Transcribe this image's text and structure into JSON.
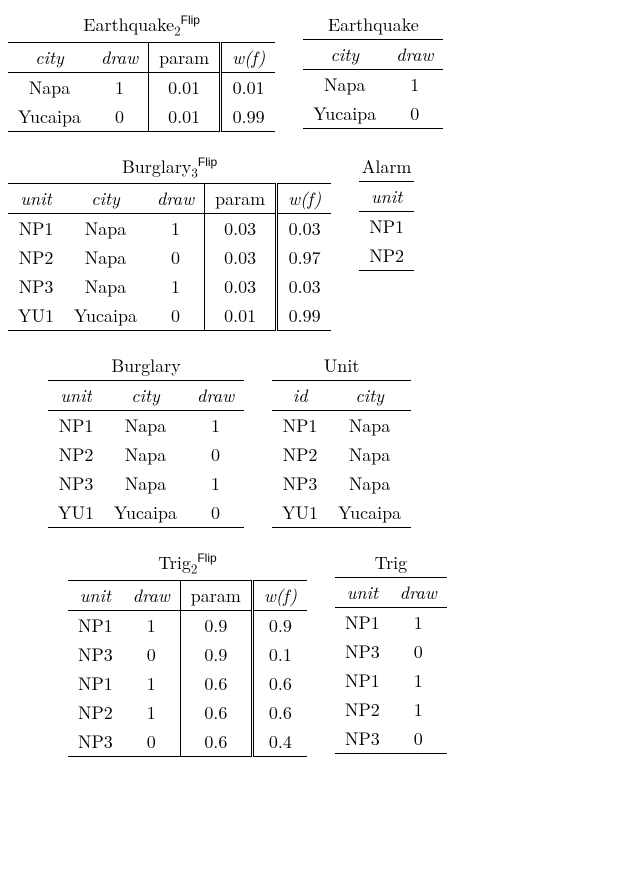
{
  "titles": {
    "earthquake_flip": "Earthquake",
    "earthquake_flip_sub": "2",
    "earthquake_flip_sup": "Flip",
    "earthquake": "Earthquake",
    "burglary_flip": "Burglary",
    "burglary_flip_sub": "3",
    "burglary_flip_sup": "Flip",
    "alarm": "Alarm",
    "burglary": "Burglary",
    "unit_tbl": "Unit",
    "trig_flip": "Trig",
    "trig_flip_sub": "2",
    "trig_flip_sup": "Flip",
    "trig": "Trig"
  },
  "hdr": {
    "city": "city",
    "draw": "draw",
    "param": "param",
    "wf": "w(f)",
    "unit": "unit",
    "id": "id"
  },
  "earthquake_flip": {
    "r0": {
      "city": "Napa",
      "draw": "1",
      "param": "0.01",
      "wf": "0.01"
    },
    "r1": {
      "city": "Yucaipa",
      "draw": "0",
      "param": "0.01",
      "wf": "0.99"
    }
  },
  "earthquake": {
    "r0": {
      "city": "Napa",
      "draw": "1"
    },
    "r1": {
      "city": "Yucaipa",
      "draw": "0"
    }
  },
  "burglary_flip": {
    "r0": {
      "unit": "NP1",
      "city": "Napa",
      "draw": "1",
      "param": "0.03",
      "wf": "0.03"
    },
    "r1": {
      "unit": "NP2",
      "city": "Napa",
      "draw": "0",
      "param": "0.03",
      "wf": "0.97"
    },
    "r2": {
      "unit": "NP3",
      "city": "Napa",
      "draw": "1",
      "param": "0.03",
      "wf": "0.03"
    },
    "r3": {
      "unit": "YU1",
      "city": "Yucaipa",
      "draw": "0",
      "param": "0.01",
      "wf": "0.99"
    }
  },
  "alarm": {
    "r0": {
      "unit": "NP1"
    },
    "r1": {
      "unit": "NP2"
    }
  },
  "burglary": {
    "r0": {
      "unit": "NP1",
      "city": "Napa",
      "draw": "1"
    },
    "r1": {
      "unit": "NP2",
      "city": "Napa",
      "draw": "0"
    },
    "r2": {
      "unit": "NP3",
      "city": "Napa",
      "draw": "1"
    },
    "r3": {
      "unit": "YU1",
      "city": "Yucaipa",
      "draw": "0"
    }
  },
  "unit_tbl": {
    "r0": {
      "id": "NP1",
      "city": "Napa"
    },
    "r1": {
      "id": "NP2",
      "city": "Napa"
    },
    "r2": {
      "id": "NP3",
      "city": "Napa"
    },
    "r3": {
      "id": "YU1",
      "city": "Yucaipa"
    }
  },
  "trig_flip": {
    "r0": {
      "unit": "NP1",
      "draw": "1",
      "param": "0.9",
      "wf": "0.9"
    },
    "r1": {
      "unit": "NP3",
      "draw": "0",
      "param": "0.9",
      "wf": "0.1"
    },
    "r2": {
      "unit": "NP1",
      "draw": "1",
      "param": "0.6",
      "wf": "0.6"
    },
    "r3": {
      "unit": "NP2",
      "draw": "1",
      "param": "0.6",
      "wf": "0.6"
    },
    "r4": {
      "unit": "NP3",
      "draw": "0",
      "param": "0.6",
      "wf": "0.4"
    }
  },
  "trig": {
    "r0": {
      "unit": "NP1",
      "draw": "1"
    },
    "r1": {
      "unit": "NP3",
      "draw": "0"
    },
    "r2": {
      "unit": "NP1",
      "draw": "1"
    },
    "r3": {
      "unit": "NP2",
      "draw": "1"
    },
    "r4": {
      "unit": "NP3",
      "draw": "0"
    }
  }
}
